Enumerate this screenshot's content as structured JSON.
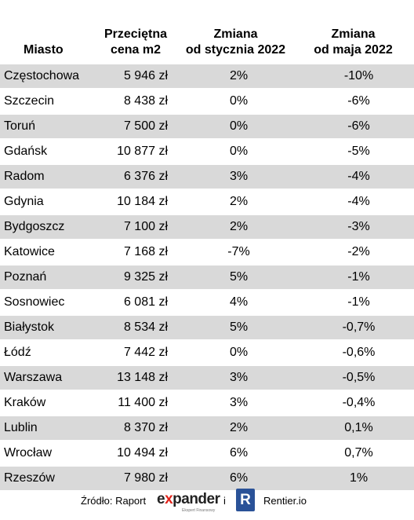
{
  "headers": {
    "city": "Miasto",
    "price": [
      "Przeciętna",
      "cena m2"
    ],
    "jan": [
      "Zmiana",
      "od stycznia 2022"
    ],
    "may": [
      "Zmiana",
      "od maja 2022"
    ]
  },
  "rows": [
    {
      "city": "Częstochowa",
      "price": "5 946 zł",
      "jan": "2%",
      "may": "-10%"
    },
    {
      "city": "Szczecin",
      "price": "8 438 zł",
      "jan": "0%",
      "may": "-6%"
    },
    {
      "city": "Toruń",
      "price": "7 500 zł",
      "jan": "0%",
      "may": "-6%"
    },
    {
      "city": "Gdańsk",
      "price": "10 877 zł",
      "jan": "0%",
      "may": "-5%"
    },
    {
      "city": "Radom",
      "price": "6 376 zł",
      "jan": "3%",
      "may": "-4%"
    },
    {
      "city": "Gdynia",
      "price": "10 184 zł",
      "jan": "2%",
      "may": "-4%"
    },
    {
      "city": "Bydgoszcz",
      "price": "7 100 zł",
      "jan": "2%",
      "may": "-3%"
    },
    {
      "city": "Katowice",
      "price": "7 168 zł",
      "jan": "-7%",
      "may": "-2%"
    },
    {
      "city": "Poznań",
      "price": "9 325 zł",
      "jan": "5%",
      "may": "-1%"
    },
    {
      "city": "Sosnowiec",
      "price": "6 081 zł",
      "jan": "4%",
      "may": "-1%"
    },
    {
      "city": "Białystok",
      "price": "8 534 zł",
      "jan": "5%",
      "may": "-0,7%"
    },
    {
      "city": "Łódź",
      "price": "7 442 zł",
      "jan": "0%",
      "may": "-0,6%"
    },
    {
      "city": "Warszawa",
      "price": "13 148 zł",
      "jan": "3%",
      "may": "-0,5%"
    },
    {
      "city": "Kraków",
      "price": "11 400 zł",
      "jan": "3%",
      "may": "-0,4%"
    },
    {
      "city": "Lublin",
      "price": "8 370 zł",
      "jan": "2%",
      "may": "0,1%"
    },
    {
      "city": "Wrocław",
      "price": "10 494 zł",
      "jan": "6%",
      "may": "0,7%"
    },
    {
      "city": "Rzeszów",
      "price": "7 980 zł",
      "jan": "6%",
      "may": "1%"
    }
  ],
  "footer": {
    "source_label": "Źródło: Raport",
    "expander_logo": {
      "pre": "e",
      "x": "x",
      "post": "pander",
      "tagline": "Ekspert Finansowy"
    },
    "and": "i",
    "r_icon": "R",
    "rentier": "Rentier.io"
  },
  "colors": {
    "stripe": "#d9d9d9",
    "expander_accent": "#e2231a",
    "rentier_blue": "#2a5298"
  }
}
